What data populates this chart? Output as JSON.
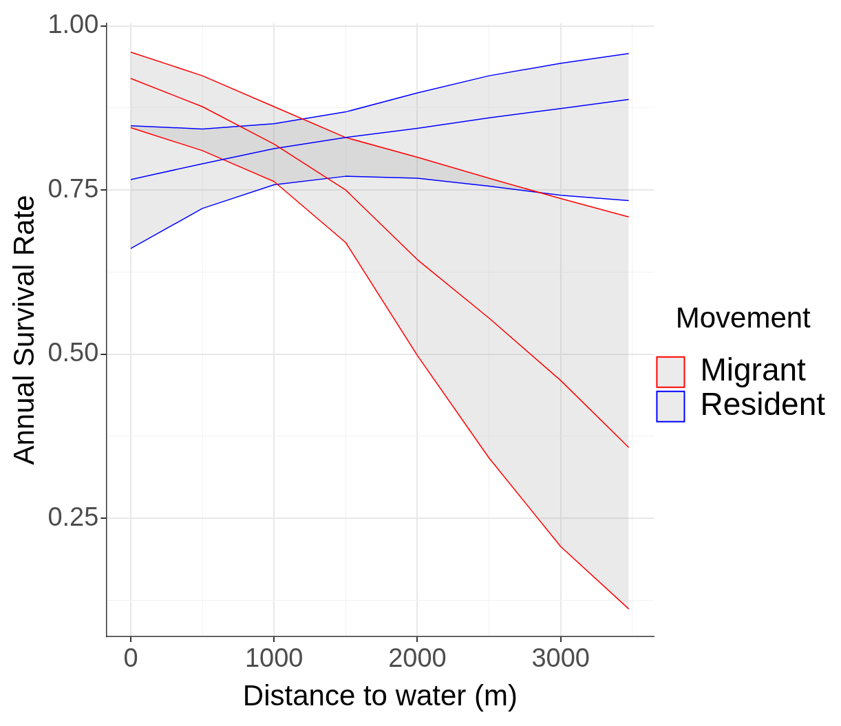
{
  "chart_data": {
    "type": "line",
    "xlabel": "Distance to water (m)",
    "ylabel": "Annual Survival Rate",
    "legend_title": "Movement",
    "legend": "right",
    "grid": true,
    "marker": "none",
    "line_style": "solid",
    "xlim": [
      -171,
      3652
    ],
    "xticks": [
      0,
      {
        "value": 500,
        "label": null
      },
      1000,
      {
        "value": 1500,
        "label": null
      },
      2000,
      {
        "value": 2500,
        "label": null
      },
      3000,
      {
        "value": 3500,
        "label": null
      }
    ],
    "ylim": [
      0.07,
      1.004
    ],
    "yticks": [
      {
        "value": 0.125,
        "label": null
      },
      {
        "value": 0.25,
        "label": "0.25"
      },
      {
        "value": 0.375,
        "label": null
      },
      {
        "value": 0.5,
        "label": "0.50"
      },
      {
        "value": 0.625,
        "label": null
      },
      {
        "value": 0.75,
        "label": "0.75"
      },
      {
        "value": 0.875,
        "label": null
      },
      {
        "value": 1,
        "label": "1.00"
      }
    ],
    "x": [
      0,
      500,
      1000,
      1500,
      2000,
      2500,
      3000,
      3475
    ],
    "series": [
      {
        "name": "Migrant",
        "color": "#ff0000",
        "values": [
          0.92,
          0.877,
          0.82,
          0.75,
          0.644,
          0.555,
          0.46,
          0.358
        ],
        "lower": [
          0.845,
          0.81,
          0.763,
          0.67,
          0.498,
          0.342,
          0.207,
          0.112
        ],
        "upper": [
          0.96,
          0.924,
          0.877,
          0.83,
          0.8,
          0.768,
          0.737,
          0.709
        ]
      },
      {
        "name": "Resident",
        "color": "#0000ff",
        "values": [
          0.766,
          0.79,
          0.813,
          0.83,
          0.844,
          0.86,
          0.874,
          0.888
        ],
        "lower": [
          0.661,
          0.722,
          0.758,
          0.771,
          0.768,
          0.756,
          0.742,
          0.734
        ],
        "upper": [
          0.848,
          0.843,
          0.851,
          0.869,
          0.898,
          0.924,
          0.943,
          0.958
        ]
      },
      {
        "color": "#ff0000",
        "values": [
          0.845,
          0.81,
          0.763,
          0.67,
          0.498,
          0.342,
          0.207,
          0.112
        ]
      },
      {
        "color": "#ff0000",
        "values": [
          0.96,
          0.924,
          0.877,
          0.83,
          0.8,
          0.768,
          0.737,
          0.709
        ]
      },
      {
        "color": "#0000ff",
        "values": [
          0.661,
          0.722,
          0.758,
          0.771,
          0.768,
          0.756,
          0.742,
          0.734
        ]
      },
      {
        "color": "#0000ff",
        "values": [
          0.848,
          0.843,
          0.851,
          0.869,
          0.898,
          0.924,
          0.943,
          0.958
        ]
      }
    ]
  }
}
